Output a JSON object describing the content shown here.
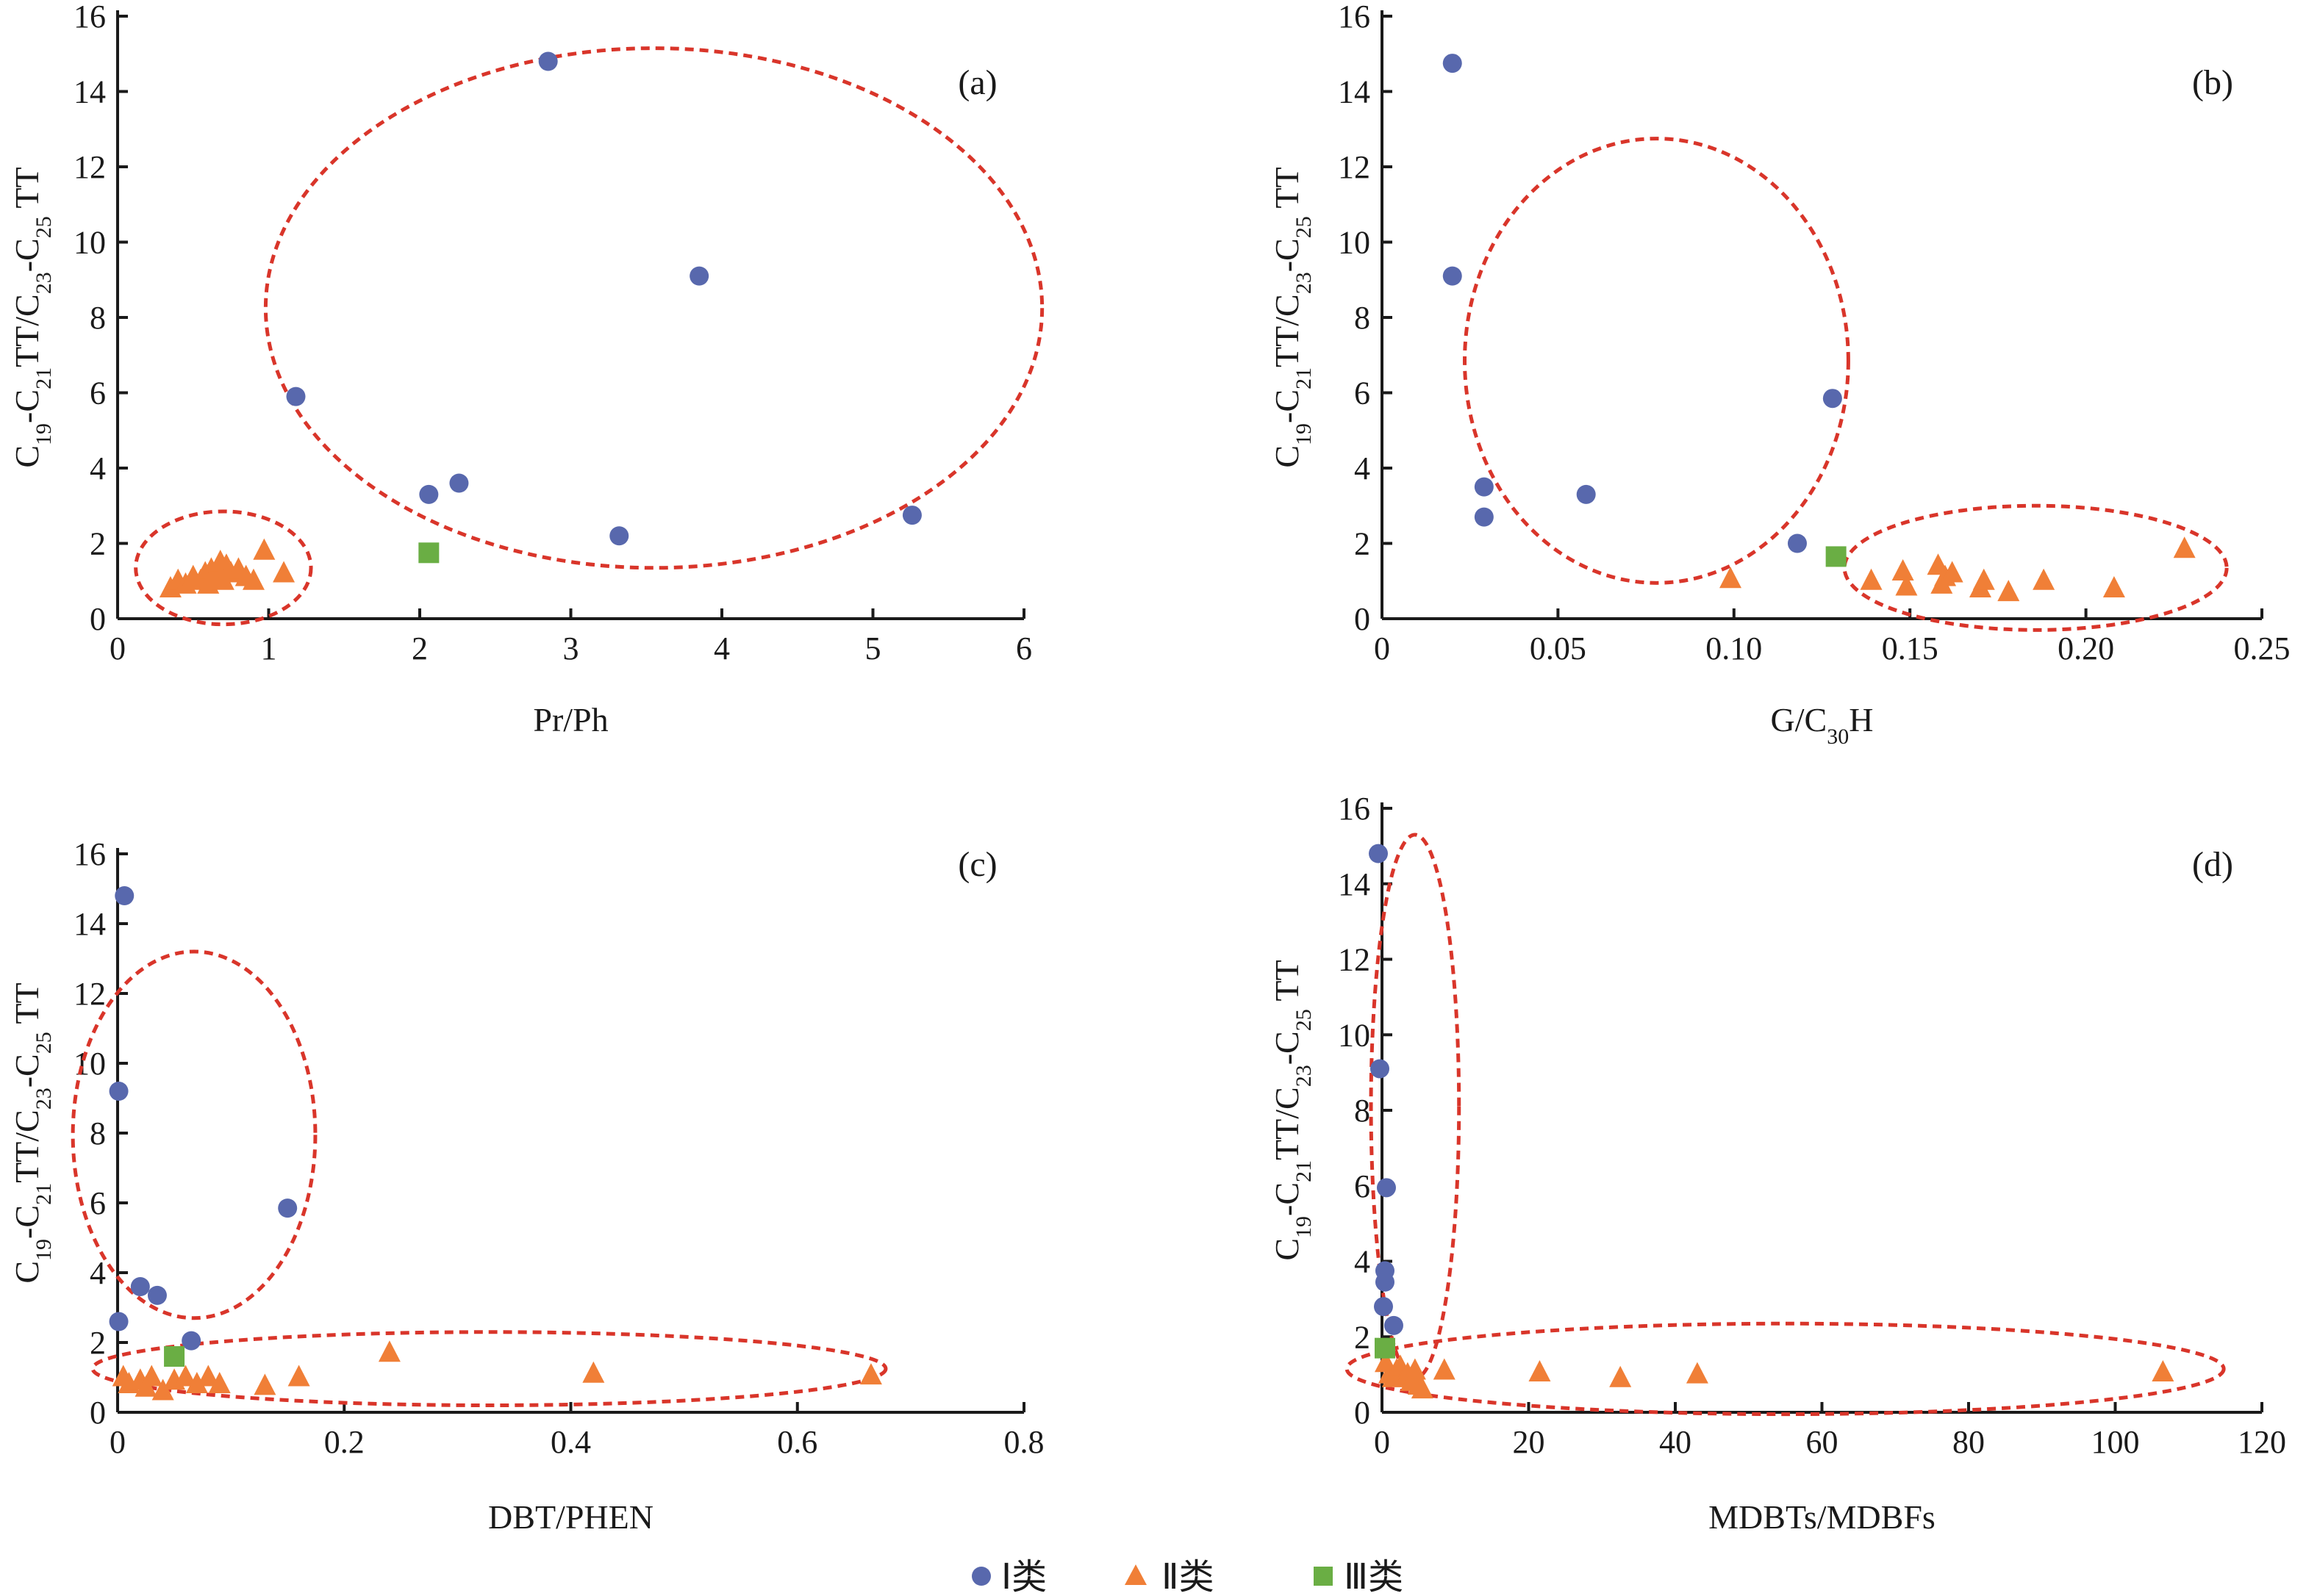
{
  "colors": {
    "class1": "#5868ad",
    "class2": "#f07f37",
    "class3": "#6aae44",
    "cluster": "#d9352a",
    "axis": "#1a1a1a"
  },
  "legend": {
    "items": [
      {
        "label": "Ⅰ类",
        "marker": "circle",
        "color": "#5868ad"
      },
      {
        "label": "Ⅱ类",
        "marker": "triangle",
        "color": "#f07f37"
      },
      {
        "label": "Ⅲ类",
        "marker": "square",
        "color": "#6aae44"
      }
    ]
  },
  "chart_data": [
    {
      "type": "scatter",
      "panel_label": "(a)",
      "xlabel": "Pr/Ph",
      "ylabel": "C19-C21TT/C23-C25TT",
      "xlim": [
        0,
        6
      ],
      "ylim": [
        0,
        16
      ],
      "xticks": [
        "0",
        "1",
        "2",
        "3",
        "4",
        "5",
        "6"
      ],
      "yticks": [
        "0",
        "2",
        "4",
        "6",
        "8",
        "10",
        "12",
        "14",
        "16"
      ],
      "series": [
        {
          "name": "Ⅰ类",
          "marker": "circle",
          "points": [
            [
              2.85,
              14.8
            ],
            [
              3.85,
              9.1
            ],
            [
              1.18,
              5.9
            ],
            [
              2.26,
              3.6
            ],
            [
              2.06,
              3.3
            ],
            [
              3.32,
              2.2
            ],
            [
              5.26,
              2.75
            ]
          ]
        },
        {
          "name": "Ⅱ类",
          "marker": "triangle",
          "points": [
            [
              0.35,
              0.8
            ],
            [
              0.4,
              1.0
            ],
            [
              0.45,
              0.9
            ],
            [
              0.5,
              1.1
            ],
            [
              0.55,
              1.0
            ],
            [
              0.58,
              1.2
            ],
            [
              0.62,
              1.3
            ],
            [
              0.65,
              1.1
            ],
            [
              0.68,
              1.5
            ],
            [
              0.72,
              1.4
            ],
            [
              0.75,
              1.2
            ],
            [
              0.8,
              1.3
            ],
            [
              0.85,
              1.1
            ],
            [
              0.9,
              1.0
            ],
            [
              0.97,
              1.8
            ],
            [
              1.1,
              1.2
            ],
            [
              0.6,
              0.9
            ],
            [
              0.7,
              1.0
            ]
          ]
        },
        {
          "name": "Ⅲ类",
          "marker": "square",
          "points": [
            [
              2.06,
              1.75
            ]
          ]
        }
      ],
      "clusters": [
        {
          "cx": 3.55,
          "cy": 8.25,
          "rx": 2.57,
          "ry": 6.9
        },
        {
          "cx": 0.7,
          "cy": 1.35,
          "rx": 0.58,
          "ry": 1.5
        }
      ]
    },
    {
      "type": "scatter",
      "panel_label": "(b)",
      "xlabel": "G/C30H",
      "ylabel": "C19-C21TT/C23-C25TT",
      "xlim": [
        0,
        0.25
      ],
      "ylim": [
        0,
        16
      ],
      "xticks": [
        "0",
        "0.05",
        "0.10",
        "0.15",
        "0.20",
        "0.25"
      ],
      "yticks": [
        "0",
        "2",
        "4",
        "6",
        "8",
        "10",
        "12",
        "14",
        "16"
      ],
      "series": [
        {
          "name": "Ⅰ类",
          "marker": "circle",
          "points": [
            [
              0.02,
              14.75
            ],
            [
              0.02,
              9.1
            ],
            [
              0.029,
              3.5
            ],
            [
              0.029,
              2.7
            ],
            [
              0.058,
              3.3
            ],
            [
              0.128,
              5.85
            ],
            [
              0.118,
              2.0
            ]
          ]
        },
        {
          "name": "Ⅱ类",
          "marker": "triangle",
          "points": [
            [
              0.099,
              1.05
            ],
            [
              0.139,
              1.0
            ],
            [
              0.148,
              1.25
            ],
            [
              0.149,
              0.85
            ],
            [
              0.158,
              1.4
            ],
            [
              0.159,
              0.9
            ],
            [
              0.16,
              1.1
            ],
            [
              0.162,
              1.2
            ],
            [
              0.17,
              0.8
            ],
            [
              0.171,
              1.0
            ],
            [
              0.178,
              0.7
            ],
            [
              0.188,
              1.0
            ],
            [
              0.208,
              0.8
            ],
            [
              0.228,
              1.85
            ]
          ]
        },
        {
          "name": "Ⅲ类",
          "marker": "square",
          "points": [
            [
              0.129,
              1.65
            ]
          ]
        }
      ],
      "clusters": [
        {
          "cx": 0.078,
          "cy": 6.85,
          "rx": 0.0545,
          "ry": 5.9
        },
        {
          "cx": 0.1857,
          "cy": 1.35,
          "rx": 0.0543,
          "ry": 1.65
        }
      ]
    },
    {
      "type": "scatter",
      "panel_label": "(c)",
      "xlabel": "DBT/PHEN",
      "ylabel": "C19-C21TT/C23-C25TT",
      "xlim": [
        0,
        0.8
      ],
      "ylim": [
        0,
        16
      ],
      "xticks": [
        "0",
        "0.2",
        "0.4",
        "0.6",
        "0.8"
      ],
      "yticks": [
        "0",
        "2",
        "4",
        "6",
        "8",
        "10",
        "12",
        "14",
        "16"
      ],
      "series": [
        {
          "name": "Ⅰ类",
          "marker": "circle",
          "points": [
            [
              0.006,
              14.8
            ],
            [
              0.001,
              9.2
            ],
            [
              0.15,
              5.85
            ],
            [
              0.02,
              3.6
            ],
            [
              0.035,
              3.35
            ],
            [
              0.001,
              2.6
            ],
            [
              0.065,
              2.05
            ]
          ]
        },
        {
          "name": "Ⅱ类",
          "marker": "triangle",
          "points": [
            [
              0.005,
              1.0
            ],
            [
              0.01,
              0.8
            ],
            [
              0.02,
              0.9
            ],
            [
              0.025,
              0.7
            ],
            [
              0.03,
              1.0
            ],
            [
              0.04,
              0.6
            ],
            [
              0.05,
              0.9
            ],
            [
              0.06,
              1.0
            ],
            [
              0.07,
              0.8
            ],
            [
              0.08,
              1.0
            ],
            [
              0.09,
              0.8
            ],
            [
              0.13,
              0.75
            ],
            [
              0.16,
              1.0
            ],
            [
              0.24,
              1.7
            ],
            [
              0.42,
              1.1
            ],
            [
              0.665,
              1.05
            ]
          ]
        },
        {
          "name": "Ⅲ类",
          "marker": "square",
          "points": [
            [
              0.05,
              1.6
            ]
          ]
        }
      ],
      "clusters": [
        {
          "cx": 0.0675,
          "cy": 7.95,
          "rx": 0.107,
          "ry": 5.25
        },
        {
          "cx": 0.328,
          "cy": 1.25,
          "rx": 0.35,
          "ry": 1.05
        }
      ]
    },
    {
      "type": "scatter",
      "panel_label": "(d)",
      "xlabel": "MDBTs/MDBFs",
      "ylabel": "C19-C21TT/C23-C25TT",
      "xlim": [
        0,
        120
      ],
      "ylim": [
        0,
        16
      ],
      "xticks": [
        "0",
        "20",
        "40",
        "60",
        "80",
        "100",
        "120"
      ],
      "yticks": [
        "0",
        "2",
        "4",
        "6",
        "8",
        "10",
        "12",
        "14",
        "16"
      ],
      "series": [
        {
          "name": "Ⅰ类",
          "marker": "circle",
          "points": [
            [
              -0.5,
              14.8
            ],
            [
              -0.3,
              9.1
            ],
            [
              0.6,
              5.95
            ],
            [
              0.4,
              3.75
            ],
            [
              0.4,
              3.45
            ],
            [
              0.2,
              2.8
            ],
            [
              1.6,
              2.3
            ]
          ]
        },
        {
          "name": "Ⅱ类",
          "marker": "triangle",
          "points": [
            [
              0.5,
              1.3
            ],
            [
              1.0,
              1.0
            ],
            [
              1.5,
              0.9
            ],
            [
              2.0,
              1.1
            ],
            [
              2.5,
              1.2
            ],
            [
              3.0,
              0.9
            ],
            [
              3.5,
              1.0
            ],
            [
              4.0,
              0.8
            ],
            [
              4.5,
              1.1
            ],
            [
              5.0,
              0.7
            ],
            [
              5.5,
              0.6
            ],
            [
              8.5,
              1.1
            ],
            [
              21.5,
              1.05
            ],
            [
              32.5,
              0.9
            ],
            [
              43.0,
              1.0
            ],
            [
              106.5,
              1.05
            ]
          ]
        },
        {
          "name": "Ⅲ类",
          "marker": "square",
          "points": [
            [
              0.4,
              1.7
            ]
          ]
        }
      ],
      "clusters": [
        {
          "cx": 4.5,
          "cy": 8.1,
          "rx": 6.0,
          "ry": 7.2
        },
        {
          "cx": 55.0,
          "cy": 1.15,
          "rx": 59.8,
          "ry": 1.2
        }
      ]
    }
  ]
}
